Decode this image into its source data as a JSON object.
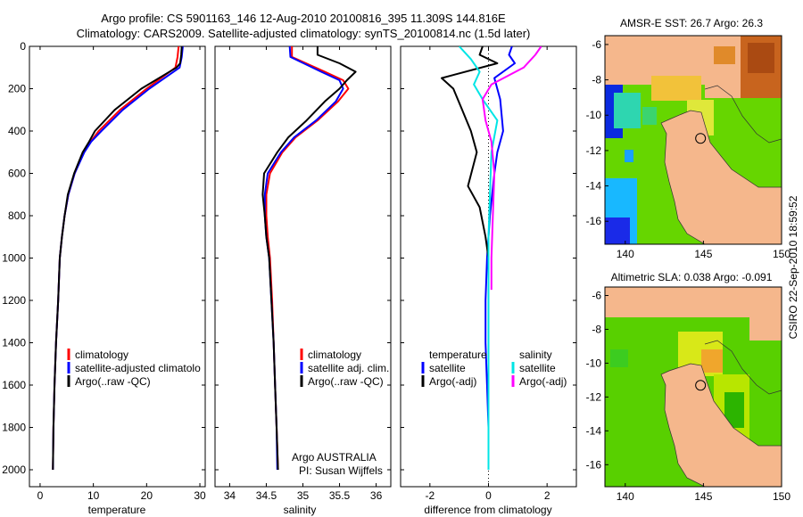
{
  "figure": {
    "title_line1": "Argo profile: CS 5901163_146 12-Aug-2010 20100816_395 11.309S 144.816E",
    "title_line2": "Climatology: CARS2009. Satellite-adjusted climatology: synTS_20100814.nc (1.5d later)",
    "side_label": "CSIRO 22-Sep-2010 18:59:52"
  },
  "colors": {
    "climatology": "#ff0000",
    "satellite": "#0000ff",
    "argo": "#000000",
    "salinity_satellite": "#00e5e5",
    "salinity_argo": "#ff00ff",
    "land": "#f5b78c",
    "ocean_mid": "#55d200"
  },
  "chart_data": [
    {
      "id": "temperature",
      "type": "line",
      "xlabel": "temperature",
      "ylabel": "",
      "xlim": [
        -2,
        31
      ],
      "ylim": [
        2080,
        0
      ],
      "xticks": [
        0,
        10,
        20,
        30
      ],
      "yticks": [
        0,
        200,
        400,
        600,
        800,
        1000,
        1200,
        1400,
        1600,
        1800,
        2000
      ],
      "legend": {
        "position": "middle-right",
        "entries": [
          "climatology",
          "satellite-adjusted climatolo",
          "Argo(..raw -QC)"
        ]
      },
      "series": [
        {
          "name": "climatology",
          "color": "#ff0000",
          "points": [
            [
              26.0,
              0
            ],
            [
              25.8,
              50
            ],
            [
              25.4,
              100
            ],
            [
              20,
              200
            ],
            [
              15,
              300
            ],
            [
              11,
              400
            ],
            [
              9.5,
              450
            ],
            [
              8.2,
              500
            ],
            [
              6.5,
              600
            ],
            [
              5.3,
              700
            ],
            [
              4.6,
              800
            ],
            [
              4.1,
              900
            ],
            [
              3.7,
              1000
            ],
            [
              3.4,
              1200
            ],
            [
              3.0,
              1400
            ],
            [
              2.7,
              1600
            ],
            [
              2.5,
              1800
            ],
            [
              2.4,
              2000
            ]
          ]
        },
        {
          "name": "satellite-adjusted climatology",
          "color": "#0000ff",
          "points": [
            [
              26.8,
              0
            ],
            [
              26.6,
              50
            ],
            [
              26.2,
              100
            ],
            [
              20.5,
              200
            ],
            [
              15.5,
              300
            ],
            [
              11.5,
              400
            ],
            [
              9.6,
              450
            ],
            [
              8.3,
              500
            ],
            [
              6.5,
              600
            ],
            [
              5.3,
              700
            ],
            [
              4.6,
              800
            ],
            [
              4.1,
              900
            ],
            [
              3.7,
              1000
            ],
            [
              3.4,
              1200
            ],
            [
              3.0,
              1400
            ],
            [
              2.7,
              1600
            ],
            [
              2.5,
              1800
            ],
            [
              2.4,
              2000
            ]
          ]
        },
        {
          "name": "Argo(..raw -QC)",
          "color": "#000000",
          "points": [
            [
              26.6,
              0
            ],
            [
              26.5,
              40
            ],
            [
              26.3,
              80
            ],
            [
              25.6,
              100
            ],
            [
              19,
              200
            ],
            [
              14,
              300
            ],
            [
              10.3,
              400
            ],
            [
              9.2,
              450
            ],
            [
              8.0,
              500
            ],
            [
              6.4,
              600
            ],
            [
              5.2,
              700
            ],
            [
              4.6,
              800
            ],
            [
              4.1,
              900
            ],
            [
              3.7,
              1000
            ],
            [
              3.4,
              1200
            ],
            [
              3.0,
              1400
            ],
            [
              2.7,
              1600
            ],
            [
              2.5,
              1800
            ],
            [
              2.4,
              2000
            ]
          ]
        }
      ]
    },
    {
      "id": "salinity",
      "type": "line",
      "xlabel": "salinity",
      "ylabel": "",
      "xlim": [
        33.8,
        36.2
      ],
      "ylim": [
        2080,
        0
      ],
      "xticks": [
        34,
        34.5,
        35,
        35.5,
        36
      ],
      "yticks": [
        0,
        200,
        400,
        600,
        800,
        1000,
        1200,
        1400,
        1600,
        1800,
        2000
      ],
      "legend": {
        "position": "middle-right",
        "entries": [
          "climatology",
          "satellite adj. clim.",
          "Argo(..raw -QC)"
        ]
      },
      "annotation": {
        "line1": "Argo AUSTRALIA",
        "line2": "PI: Susan Wijffels"
      },
      "series": [
        {
          "name": "climatology",
          "color": "#ff0000",
          "points": [
            [
              34.85,
              0
            ],
            [
              34.85,
              50
            ],
            [
              35.3,
              120
            ],
            [
              35.55,
              160
            ],
            [
              35.62,
              200
            ],
            [
              35.48,
              260
            ],
            [
              35.2,
              350
            ],
            [
              34.9,
              430
            ],
            [
              34.72,
              500
            ],
            [
              34.55,
              600
            ],
            [
              34.5,
              700
            ],
            [
              34.5,
              800
            ],
            [
              34.52,
              900
            ],
            [
              34.55,
              1000
            ],
            [
              34.58,
              1200
            ],
            [
              34.6,
              1400
            ],
            [
              34.62,
              1600
            ],
            [
              34.64,
              1800
            ],
            [
              34.66,
              2000
            ]
          ]
        },
        {
          "name": "satellite adj. clim.",
          "color": "#0000ff",
          "points": [
            [
              34.82,
              0
            ],
            [
              34.83,
              50
            ],
            [
              35.25,
              120
            ],
            [
              35.5,
              160
            ],
            [
              35.55,
              200
            ],
            [
              35.45,
              260
            ],
            [
              35.18,
              350
            ],
            [
              34.88,
              430
            ],
            [
              34.7,
              500
            ],
            [
              34.52,
              600
            ],
            [
              34.48,
              700
            ],
            [
              34.48,
              800
            ],
            [
              34.5,
              900
            ],
            [
              34.54,
              1000
            ],
            [
              34.57,
              1200
            ],
            [
              34.6,
              1400
            ],
            [
              34.62,
              1600
            ],
            [
              34.64,
              1800
            ],
            [
              34.65,
              2000
            ]
          ]
        },
        {
          "name": "Argo(..raw -QC)",
          "color": "#000000",
          "points": [
            [
              35.2,
              0
            ],
            [
              35.2,
              40
            ],
            [
              35.5,
              80
            ],
            [
              35.72,
              120
            ],
            [
              35.6,
              160
            ],
            [
              35.5,
              200
            ],
            [
              35.3,
              260
            ],
            [
              35.05,
              350
            ],
            [
              34.8,
              430
            ],
            [
              34.65,
              500
            ],
            [
              34.47,
              600
            ],
            [
              34.45,
              700
            ],
            [
              34.48,
              800
            ],
            [
              34.5,
              900
            ],
            [
              34.54,
              1000
            ],
            [
              34.57,
              1200
            ],
            [
              34.6,
              1400
            ],
            [
              34.62,
              1600
            ],
            [
              34.64,
              1800
            ],
            [
              34.66,
              2000
            ]
          ]
        }
      ]
    },
    {
      "id": "difference",
      "type": "line",
      "xlabel": "difference from climatology",
      "ylabel": "",
      "xlim": [
        -3,
        3
      ],
      "ylim": [
        2080,
        0
      ],
      "xticks": [
        -2,
        0,
        2
      ],
      "yticks": [
        0,
        200,
        400,
        600,
        800,
        1000,
        1200,
        1400,
        1600,
        1800,
        2000
      ],
      "legend": {
        "position": "middle",
        "entries": [
          "temperature",
          "satellite",
          "Argo(-adj)",
          "salinity",
          "satellite",
          "Argo(-adj)"
        ]
      },
      "series": [
        {
          "name": "temperature satellite",
          "color": "#0000ff",
          "points": [
            [
              0.8,
              0
            ],
            [
              0.7,
              40
            ],
            [
              0.9,
              80
            ],
            [
              0.2,
              150
            ],
            [
              0.4,
              250
            ],
            [
              0.5,
              400
            ],
            [
              0.3,
              500
            ],
            [
              0.2,
              600
            ],
            [
              0.05,
              800
            ],
            [
              -0.05,
              1000
            ],
            [
              -0.1,
              1200
            ],
            [
              -0.1,
              1400
            ],
            [
              -0.05,
              1600
            ],
            [
              0,
              1800
            ],
            [
              0,
              2000
            ]
          ]
        },
        {
          "name": "temperature Argo(-adj)",
          "color": "#000000",
          "points": [
            [
              -0.2,
              0
            ],
            [
              -0.3,
              40
            ],
            [
              0.3,
              80
            ],
            [
              -1.6,
              150
            ],
            [
              -1.2,
              200
            ],
            [
              -0.9,
              300
            ],
            [
              -0.6,
              400
            ],
            [
              -0.4,
              500
            ],
            [
              -0.7,
              660
            ],
            [
              -0.3,
              760
            ],
            [
              -0.1,
              900
            ],
            [
              0,
              1000
            ],
            [
              0,
              1200
            ],
            [
              0,
              1400
            ],
            [
              0,
              1600
            ],
            [
              0,
              1800
            ],
            [
              0,
              2000
            ]
          ]
        },
        {
          "name": "salinity satellite",
          "color": "#00e5e5",
          "points": [
            [
              -1.0,
              0
            ],
            [
              -0.6,
              60
            ],
            [
              -0.3,
              120
            ],
            [
              -0.5,
              180
            ],
            [
              -0.2,
              250
            ],
            [
              0.3,
              350
            ],
            [
              0.1,
              500
            ],
            [
              0.05,
              700
            ],
            [
              0,
              900
            ],
            [
              0,
              1200
            ],
            [
              0,
              1500
            ],
            [
              0,
              2000
            ]
          ]
        },
        {
          "name": "salinity Argo(-adj)",
          "color": "#ff00ff",
          "points": [
            [
              1.8,
              0
            ],
            [
              1.6,
              40
            ],
            [
              1.2,
              100
            ],
            [
              0.1,
              180
            ],
            [
              -0.2,
              250
            ],
            [
              -0.1,
              350
            ],
            [
              0.1,
              450
            ],
            [
              0.2,
              600
            ],
            [
              0.15,
              800
            ],
            [
              0.1,
              1000
            ],
            [
              0.1,
              1150
            ]
          ]
        }
      ]
    },
    {
      "id": "sst_map",
      "type": "heatmap",
      "title": "AMSR-E SST: 26.7 Argo: 26.3",
      "xlim": [
        138.7,
        150
      ],
      "ylim": [
        -17.3,
        -5.5
      ],
      "xticks": [
        140,
        145,
        150
      ],
      "yticks": [
        -6,
        -8,
        -10,
        -12,
        -14,
        -16
      ],
      "marker": {
        "lon": 144.816,
        "lat": -11.309
      }
    },
    {
      "id": "sla_map",
      "type": "heatmap",
      "title": "Altimetric SLA: 0.038 Argo: -0.091",
      "xlim": [
        138.7,
        150
      ],
      "ylim": [
        -17.3,
        -5.5
      ],
      "xticks": [
        140,
        145,
        150
      ],
      "yticks": [
        -6,
        -8,
        -10,
        -12,
        -14,
        -16
      ],
      "marker": {
        "lon": 144.816,
        "lat": -11.309
      }
    }
  ]
}
